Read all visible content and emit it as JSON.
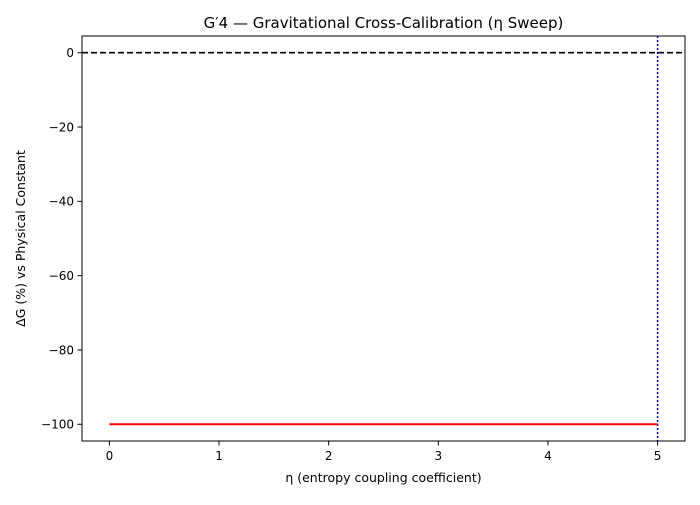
{
  "chart_data": {
    "type": "line",
    "title": "G′4 — Gravitational Cross-Calibration (η Sweep)",
    "xlabel": "η (entropy coupling coefficient)",
    "ylabel": "ΔG (%) vs Physical Constant",
    "xlim": [
      -0.25,
      5.25
    ],
    "ylim": [
      -104.5,
      4.5
    ],
    "xticks": [
      0,
      1,
      2,
      3,
      4,
      5
    ],
    "xtick_labels": [
      "0",
      "1",
      "2",
      "3",
      "4",
      "5"
    ],
    "yticks": [
      0,
      -20,
      -40,
      -60,
      -80,
      -100
    ],
    "ytick_labels": [
      "0",
      "−20",
      "−40",
      "−60",
      "−80",
      "−100"
    ],
    "grid": false,
    "series": [
      {
        "x": [
          0,
          1,
          2,
          3,
          4,
          5
        ],
        "y": [
          -100,
          -100,
          -100,
          -100,
          -100,
          -100
        ],
        "color": "#ff0000",
        "style": "solid"
      }
    ],
    "reference_lines": [
      {
        "orientation": "horizontal",
        "value": 0,
        "color": "#000000",
        "style": "dashed"
      },
      {
        "orientation": "vertical",
        "value": 5,
        "color": "#0000cc",
        "style": "dotted"
      }
    ]
  }
}
